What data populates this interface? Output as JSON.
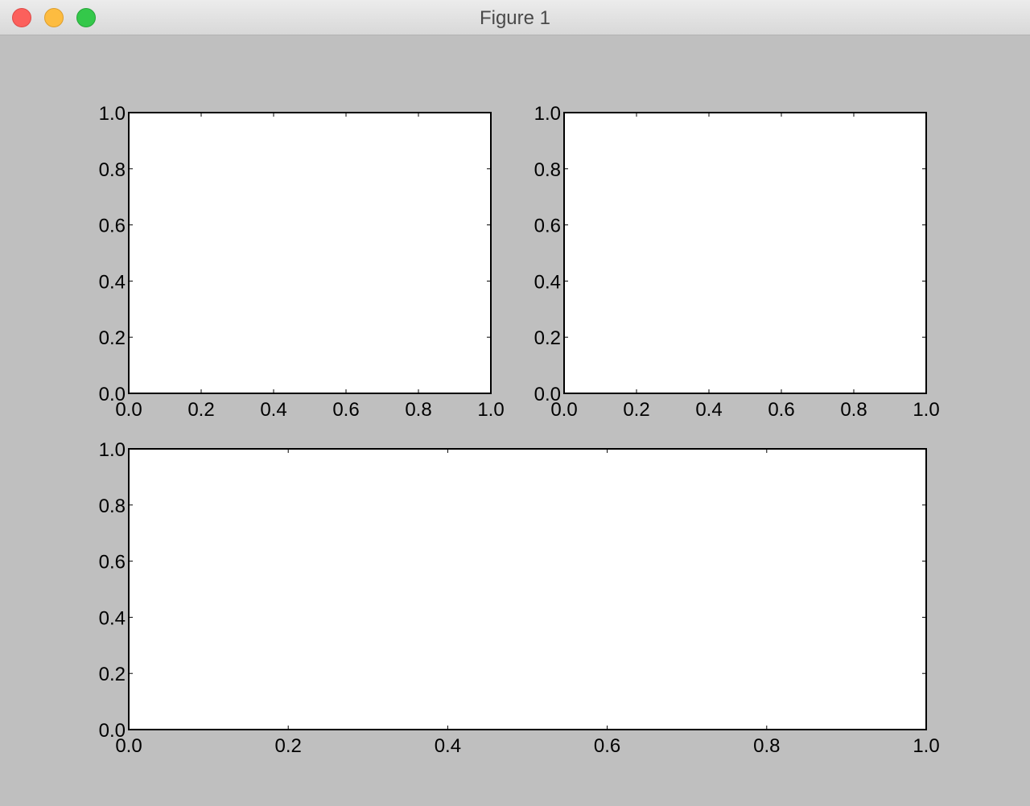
{
  "window": {
    "title": "Figure 1",
    "background": "#bfbfbf"
  },
  "chart_data": [
    {
      "type": "line",
      "title": "",
      "xlabel": "",
      "ylabel": "",
      "series": [],
      "xlim": [
        0.0,
        1.0
      ],
      "ylim": [
        0.0,
        1.0
      ],
      "xticks": [
        "0.0",
        "0.2",
        "0.4",
        "0.6",
        "0.8",
        "1.0"
      ],
      "yticks": [
        "0.0",
        "0.2",
        "0.4",
        "0.6",
        "0.8",
        "1.0"
      ],
      "grid": false
    },
    {
      "type": "line",
      "title": "",
      "xlabel": "",
      "ylabel": "",
      "series": [],
      "xlim": [
        0.0,
        1.0
      ],
      "ylim": [
        0.0,
        1.0
      ],
      "xticks": [
        "0.0",
        "0.2",
        "0.4",
        "0.6",
        "0.8",
        "1.0"
      ],
      "yticks": [
        "0.0",
        "0.2",
        "0.4",
        "0.6",
        "0.8",
        "1.0"
      ],
      "grid": false
    },
    {
      "type": "line",
      "title": "",
      "xlabel": "",
      "ylabel": "",
      "series": [],
      "xlim": [
        0.0,
        1.0
      ],
      "ylim": [
        0.0,
        1.0
      ],
      "xticks": [
        "0.0",
        "0.2",
        "0.4",
        "0.6",
        "0.8",
        "1.0"
      ],
      "yticks": [
        "0.0",
        "0.2",
        "0.4",
        "0.6",
        "0.8",
        "1.0"
      ],
      "grid": false
    }
  ]
}
